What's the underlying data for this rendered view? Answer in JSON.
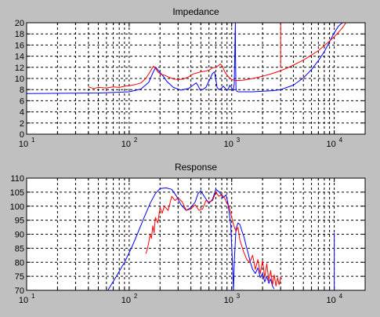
{
  "colors": {
    "figure_bg": "#c0c0c0",
    "axes_bg": "#ffffff",
    "series_blue": "#0000ff",
    "series_red": "#ff0000",
    "grid": "#000000"
  },
  "chart_data": [
    {
      "type": "line",
      "title": "Impedance",
      "xlabel": "",
      "ylabel": "",
      "x_scale": "log",
      "xlim": [
        10,
        20000
      ],
      "ylim": [
        0,
        20
      ],
      "grid": true,
      "x_tick_labels": [
        {
          "value": 10,
          "base": "10",
          "exp": "1"
        },
        {
          "value": 100,
          "base": "10",
          "exp": "2"
        },
        {
          "value": 1000,
          "base": "10",
          "exp": "3"
        },
        {
          "value": 10000,
          "base": "10",
          "exp": "4"
        }
      ],
      "y_ticks": [
        0,
        2,
        4,
        6,
        8,
        10,
        12,
        14,
        16,
        18,
        20
      ],
      "series": [
        {
          "color": "#0000ff",
          "x": [
            10,
            50,
            100,
            130,
            155,
            172,
            182,
            195,
            215,
            235,
            270,
            320,
            380,
            420,
            450,
            470,
            490,
            520,
            560,
            610,
            650,
            680,
            700,
            720,
            750,
            790,
            830,
            860,
            880,
            920,
            960,
            1000,
            1030,
            1060,
            1080,
            1085,
            1090,
            1100,
            1120,
            1160,
            1300,
            1600,
            2000,
            2500,
            3000,
            4000,
            5000,
            6000,
            7000,
            8000,
            9000,
            10000,
            11000,
            12000
          ],
          "y": [
            7.3,
            7.4,
            7.6,
            8.1,
            9.3,
            11.2,
            12.0,
            11.3,
            10.4,
            9.4,
            8.4,
            7.9,
            8.2,
            8.8,
            9.2,
            8.7,
            8.0,
            8.0,
            8.4,
            9.8,
            10.9,
            11.2,
            9.8,
            8.4,
            8.0,
            8.2,
            8.6,
            8.3,
            7.9,
            8.0,
            8.8,
            8.3,
            7.8,
            9.0,
            18.0,
            20.0,
            14.0,
            8.2,
            7.7,
            7.6,
            7.6,
            7.6,
            7.7,
            7.8,
            8.0,
            8.8,
            10.1,
            11.6,
            13.2,
            14.8,
            16.6,
            18.2,
            19.4,
            20.0
          ]
        },
        {
          "color": "#ff0000",
          "x": [
            40,
            45,
            50,
            60,
            70,
            80,
            90,
            100,
            115,
            130,
            145,
            160,
            172,
            180,
            190,
            205,
            220,
            240,
            270,
            300,
            340,
            380,
            420,
            460,
            500,
            550,
            600,
            650,
            700,
            740,
            780,
            810,
            850,
            900,
            950,
            1000,
            1100,
            1300,
            1600,
            2000,
            2500,
            3000,
            3500,
            4000,
            5000,
            6000,
            7000,
            8000,
            9000,
            10000,
            11000,
            12000,
            13000
          ],
          "y": [
            8.5,
            8.2,
            8.4,
            8.3,
            8.5,
            8.4,
            8.6,
            8.7,
            8.9,
            9.2,
            10.0,
            11.2,
            12.2,
            11.9,
            11.2,
            10.7,
            10.6,
            10.3,
            9.9,
            9.8,
            9.9,
            10.3,
            10.8,
            11.0,
            11.2,
            11.3,
            11.5,
            11.9,
            12.0,
            12.3,
            12.6,
            12.2,
            11.3,
            10.6,
            10.1,
            9.8,
            9.6,
            9.7,
            10.0,
            10.4,
            10.9,
            11.4,
            11.9,
            12.4,
            13.3,
            14.2,
            15.0,
            15.9,
            16.7,
            17.5,
            18.3,
            19.1,
            20.0
          ]
        }
      ],
      "vertical_lines": [
        {
          "color": "#ff0000",
          "x": 3000,
          "y_from": 20,
          "y_to": 12.0
        }
      ]
    },
    {
      "type": "line",
      "title": "Response",
      "xlabel": "",
      "ylabel": "",
      "x_scale": "log",
      "xlim": [
        10,
        20000
      ],
      "ylim": [
        70,
        110
      ],
      "grid": true,
      "x_tick_labels": [
        {
          "value": 10,
          "base": "10",
          "exp": "1"
        },
        {
          "value": 100,
          "base": "10",
          "exp": "2"
        },
        {
          "value": 1000,
          "base": "10",
          "exp": "3"
        },
        {
          "value": 10000,
          "base": "10",
          "exp": "4"
        }
      ],
      "y_ticks": [
        70,
        75,
        80,
        85,
        90,
        95,
        100,
        105,
        110
      ],
      "series": [
        {
          "color": "#0000ff",
          "x": [
            62,
            75,
            90,
            105,
            120,
            140,
            160,
            180,
            200,
            230,
            260,
            290,
            320,
            360,
            400,
            440,
            470,
            500,
            550,
            600,
            650,
            700,
            760,
            820,
            880,
            920,
            950,
            980,
            1000,
            1020,
            1040,
            1060,
            1100,
            1150,
            1200,
            1260,
            1320,
            1380,
            1450,
            1520,
            1600,
            1700,
            1800,
            1900,
            2000,
            2100,
            2200,
            2300,
            2400,
            2500,
            2600
          ],
          "y": [
            70.0,
            75.0,
            80.0,
            85.0,
            90.0,
            96.0,
            101.0,
            104.5,
            106.3,
            106.5,
            106.0,
            103.5,
            100.5,
            98.5,
            99.5,
            101.5,
            104.5,
            105.5,
            103.0,
            101.0,
            102.5,
            106.0,
            105.0,
            103.0,
            104.0,
            101.0,
            97.0,
            93.0,
            86.0,
            78.0,
            70.0,
            80.0,
            92.0,
            94.0,
            93.5,
            91.0,
            89.0,
            86.0,
            83.0,
            80.0,
            77.5,
            76.0,
            78.0,
            74.5,
            76.0,
            73.0,
            75.0,
            72.5,
            74.0,
            71.5,
            70.5
          ]
        },
        {
          "color": "#ff0000",
          "x": [
            145,
            150,
            155,
            160,
            165,
            170,
            175,
            180,
            190,
            200,
            210,
            220,
            240,
            260,
            280,
            300,
            330,
            360,
            400,
            440,
            480,
            520,
            560,
            600,
            650,
            700,
            750,
            800,
            850,
            900,
            950,
            1000,
            1050,
            1100,
            1150,
            1200,
            1300,
            1400,
            1500,
            1600,
            1700,
            1800,
            1900,
            2000,
            2100,
            2200,
            2300,
            2400,
            2500,
            2600,
            2700,
            2800,
            2900,
            3000,
            3100
          ],
          "y": [
            83.0,
            84.5,
            87.0,
            90.0,
            88.5,
            93.0,
            90.5,
            96.0,
            94.0,
            99.5,
            97.5,
            100.0,
            98.5,
            103.5,
            102.0,
            103.0,
            101.5,
            98.5,
            99.0,
            100.5,
            98.5,
            99.0,
            102.0,
            101.5,
            102.0,
            105.0,
            103.5,
            104.0,
            103.0,
            101.0,
            99.5,
            96.0,
            93.0,
            91.0,
            92.5,
            88.0,
            84.0,
            81.0,
            80.0,
            82.5,
            77.5,
            81.0,
            76.0,
            80.5,
            74.5,
            79.5,
            73.5,
            77.0,
            72.0,
            75.5,
            71.5,
            74.5,
            72.0,
            74.5,
            74.0
          ]
        }
      ],
      "vertical_lines": [
        {
          "color": "#0000ff",
          "x": 10000,
          "y_from": 70,
          "y_to": 90.5
        }
      ]
    }
  ]
}
